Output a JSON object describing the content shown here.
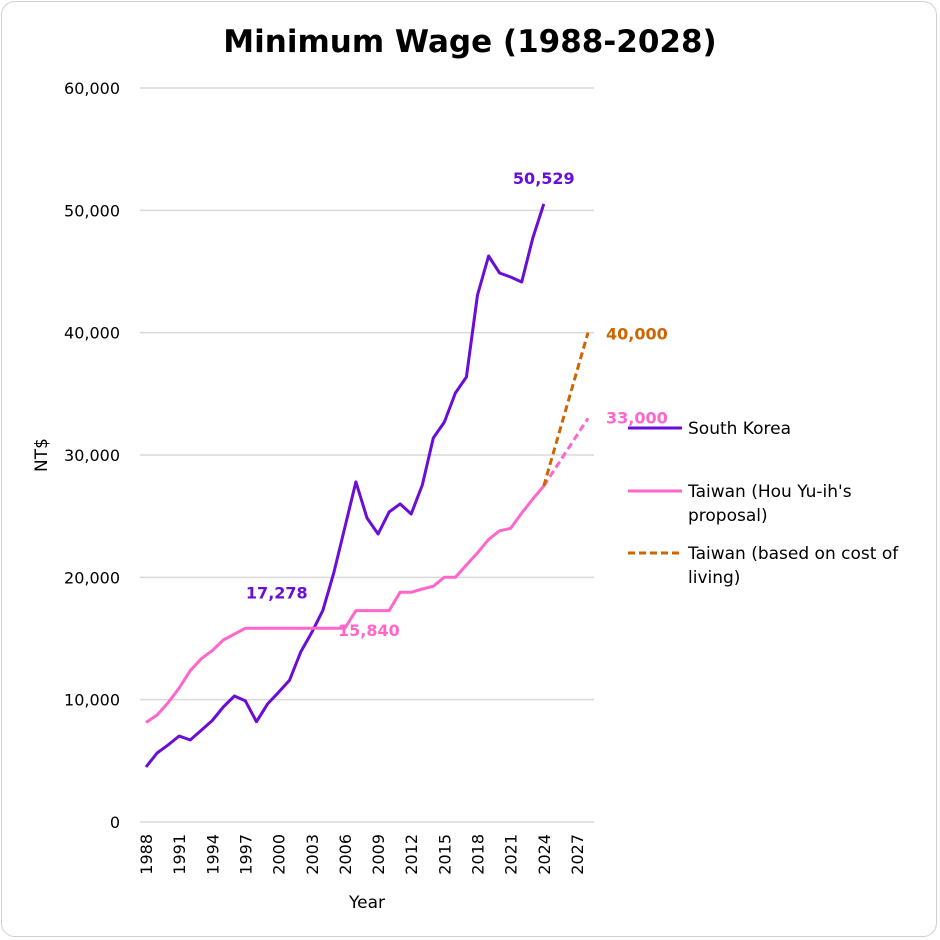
{
  "chart_data": {
    "type": "line",
    "title": "Minimum Wage (1988-2028)",
    "xlabel": "Year",
    "ylabel": "NT$",
    "ylim": [
      0,
      60000
    ],
    "xlim": [
      1988,
      2028
    ],
    "yticks": [
      0,
      10000,
      20000,
      30000,
      40000,
      50000,
      60000
    ],
    "ytick_labels": [
      "0",
      "10,000",
      "20,000",
      "30,000",
      "40,000",
      "50,000",
      "60,000"
    ],
    "xtick_labels": [
      "1988",
      "1991",
      "1994",
      "1997",
      "2000",
      "2003",
      "2006",
      "2009",
      "2012",
      "2015",
      "2018",
      "2021",
      "2024",
      "2027"
    ],
    "xtick_years": [
      1988,
      1991,
      1994,
      1997,
      2000,
      2003,
      2006,
      2009,
      2012,
      2015,
      2018,
      2021,
      2024,
      2027
    ],
    "grid": "horizontal",
    "legend_position": "right",
    "series": [
      {
        "name": "South Korea",
        "color": "#6a0dd6",
        "style": "solid",
        "x": [
          1988,
          1989,
          1990,
          1991,
          1992,
          1993,
          1994,
          1995,
          1996,
          1997,
          1998,
          1999,
          2000,
          2001,
          2002,
          2003,
          2004,
          2005,
          2006,
          2007,
          2008,
          2009,
          2010,
          2011,
          2012,
          2013,
          2014,
          2015,
          2016,
          2017,
          2018,
          2019,
          2020,
          2021,
          2022,
          2023,
          2024
        ],
        "values": [
          4500,
          5640,
          6300,
          7030,
          6700,
          7500,
          8300,
          9400,
          10300,
          9900,
          8200,
          9650,
          10600,
          11600,
          13900,
          15500,
          17278,
          20400,
          24100,
          27800,
          24850,
          23540,
          25340,
          26000,
          25180,
          27550,
          31390,
          32700,
          35070,
          36380,
          43080,
          46270,
          44880,
          44550,
          44140,
          47740,
          50529
        ]
      },
      {
        "name": "Taiwan (Hou Yu-ih's proposal)",
        "color": "#ff66cc",
        "style": "solid",
        "x": [
          1988,
          1989,
          1990,
          1991,
          1992,
          1993,
          1994,
          1995,
          1996,
          1997,
          1998,
          1999,
          2000,
          2001,
          2002,
          2003,
          2004,
          2005,
          2006,
          2007,
          2008,
          2009,
          2010,
          2011,
          2012,
          2013,
          2014,
          2015,
          2016,
          2017,
          2018,
          2019,
          2020,
          2021,
          2022,
          2023,
          2024
        ],
        "values": [
          8130,
          8750,
          9750,
          10950,
          12365,
          13350,
          14010,
          14880,
          15360,
          15840,
          15840,
          15840,
          15840,
          15840,
          15840,
          15840,
          15840,
          15840,
          15840,
          17280,
          17280,
          17280,
          17280,
          18780,
          18780,
          19047,
          19273,
          20008,
          20008,
          21009,
          22000,
          23100,
          23800,
          24000,
          25250,
          26400,
          27470
        ]
      },
      {
        "name": "Taiwan (Hou Yu-ih's proposal) projection",
        "color": "#ff66cc",
        "style": "dashed",
        "legend": false,
        "x": [
          2024,
          2028
        ],
        "values": [
          27470,
          33000
        ]
      },
      {
        "name": "Taiwan (based on cost of living)",
        "color": "#cc6600",
        "style": "dashed",
        "x": [
          2024,
          2028
        ],
        "values": [
          27470,
          40000
        ]
      }
    ],
    "annotations": [
      {
        "text": "50,529",
        "series": "South Korea",
        "x": 2024,
        "y": 50529,
        "color": "#6a0dd6"
      },
      {
        "text": "17,278",
        "series": "South Korea",
        "x": 2004,
        "y": 17278,
        "color": "#6a0dd6"
      },
      {
        "text": "15,840",
        "series": "Taiwan (Hou Yu-ih's proposal)",
        "x": 2006,
        "y": 15840,
        "color": "#ff66cc"
      },
      {
        "text": "40,000",
        "series": "Taiwan (based on cost of living)",
        "x": 2028,
        "y": 40000,
        "color": "#cc6600"
      },
      {
        "text": "33,000",
        "series": "Taiwan (Hou Yu-ih's proposal)",
        "x": 2028,
        "y": 33000,
        "color": "#ff66cc"
      }
    ],
    "legend": [
      {
        "label_lines": [
          "South Korea"
        ],
        "color": "#6a0dd6",
        "style": "solid"
      },
      {
        "label_lines": [
          "Taiwan (Hou Yu-ih's",
          "proposal)"
        ],
        "color": "#ff66cc",
        "style": "solid"
      },
      {
        "label_lines": [
          "Taiwan (based on cost of",
          "living)"
        ],
        "color": "#cc6600",
        "style": "dashed"
      }
    ]
  }
}
